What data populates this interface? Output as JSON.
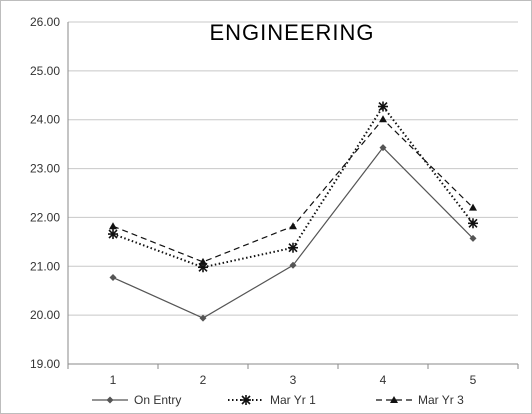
{
  "chart_data": {
    "type": "line",
    "title": "ENGINEERING",
    "xlabel": "",
    "ylabel": "",
    "categories": [
      "1",
      "2",
      "3",
      "4",
      "5"
    ],
    "ylim": [
      19.0,
      26.0
    ],
    "yticks": [
      "19.00",
      "20.00",
      "21.00",
      "22.00",
      "23.00",
      "24.00",
      "25.00",
      "26.00"
    ],
    "grid": "horizontal",
    "legend": "bottom",
    "series": [
      {
        "name": "On Entry",
        "values": [
          20.77,
          19.94,
          21.02,
          23.43,
          21.57
        ],
        "color": "#555555",
        "dash": "solid",
        "marker": "diamond"
      },
      {
        "name": "Mar Yr 1",
        "values": [
          21.66,
          20.98,
          21.38,
          24.27,
          21.88
        ],
        "color": "#111111",
        "dash": "dotted",
        "marker": "asterisk"
      },
      {
        "name": "Mar Yr 3",
        "values": [
          21.82,
          21.09,
          21.82,
          24.01,
          22.2
        ],
        "color": "#111111",
        "dash": "dashed",
        "marker": "triangle"
      }
    ]
  }
}
